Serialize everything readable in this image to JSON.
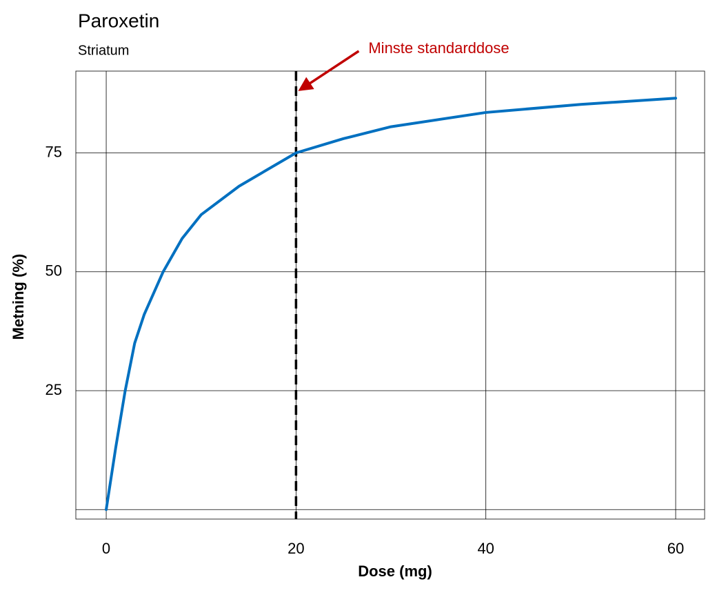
{
  "chart_data": {
    "type": "line",
    "title": "Paroxetin",
    "subtitle": "Striatum",
    "xlabel": "Dose (mg)",
    "ylabel": "Metning (%)",
    "x": [
      0,
      1,
      2,
      3,
      4,
      6,
      8,
      10,
      14,
      20,
      25,
      30,
      40,
      50,
      60
    ],
    "series": [
      {
        "color": "#0070c0",
        "values": [
          0,
          13,
          25,
          35,
          41,
          50,
          57,
          62,
          68,
          75,
          78,
          80.5,
          83.5,
          85.2,
          86.5
        ]
      }
    ],
    "xlim": [
      -3.2,
      63.05
    ],
    "ylim": [
      -2,
      92.2
    ],
    "xticks": [
      0,
      20,
      40,
      60
    ],
    "yticks": [
      25,
      50,
      75
    ],
    "grid": true,
    "annotations": [
      {
        "text": "Minste standarddose",
        "x": 20,
        "color": "#c00000"
      }
    ]
  }
}
